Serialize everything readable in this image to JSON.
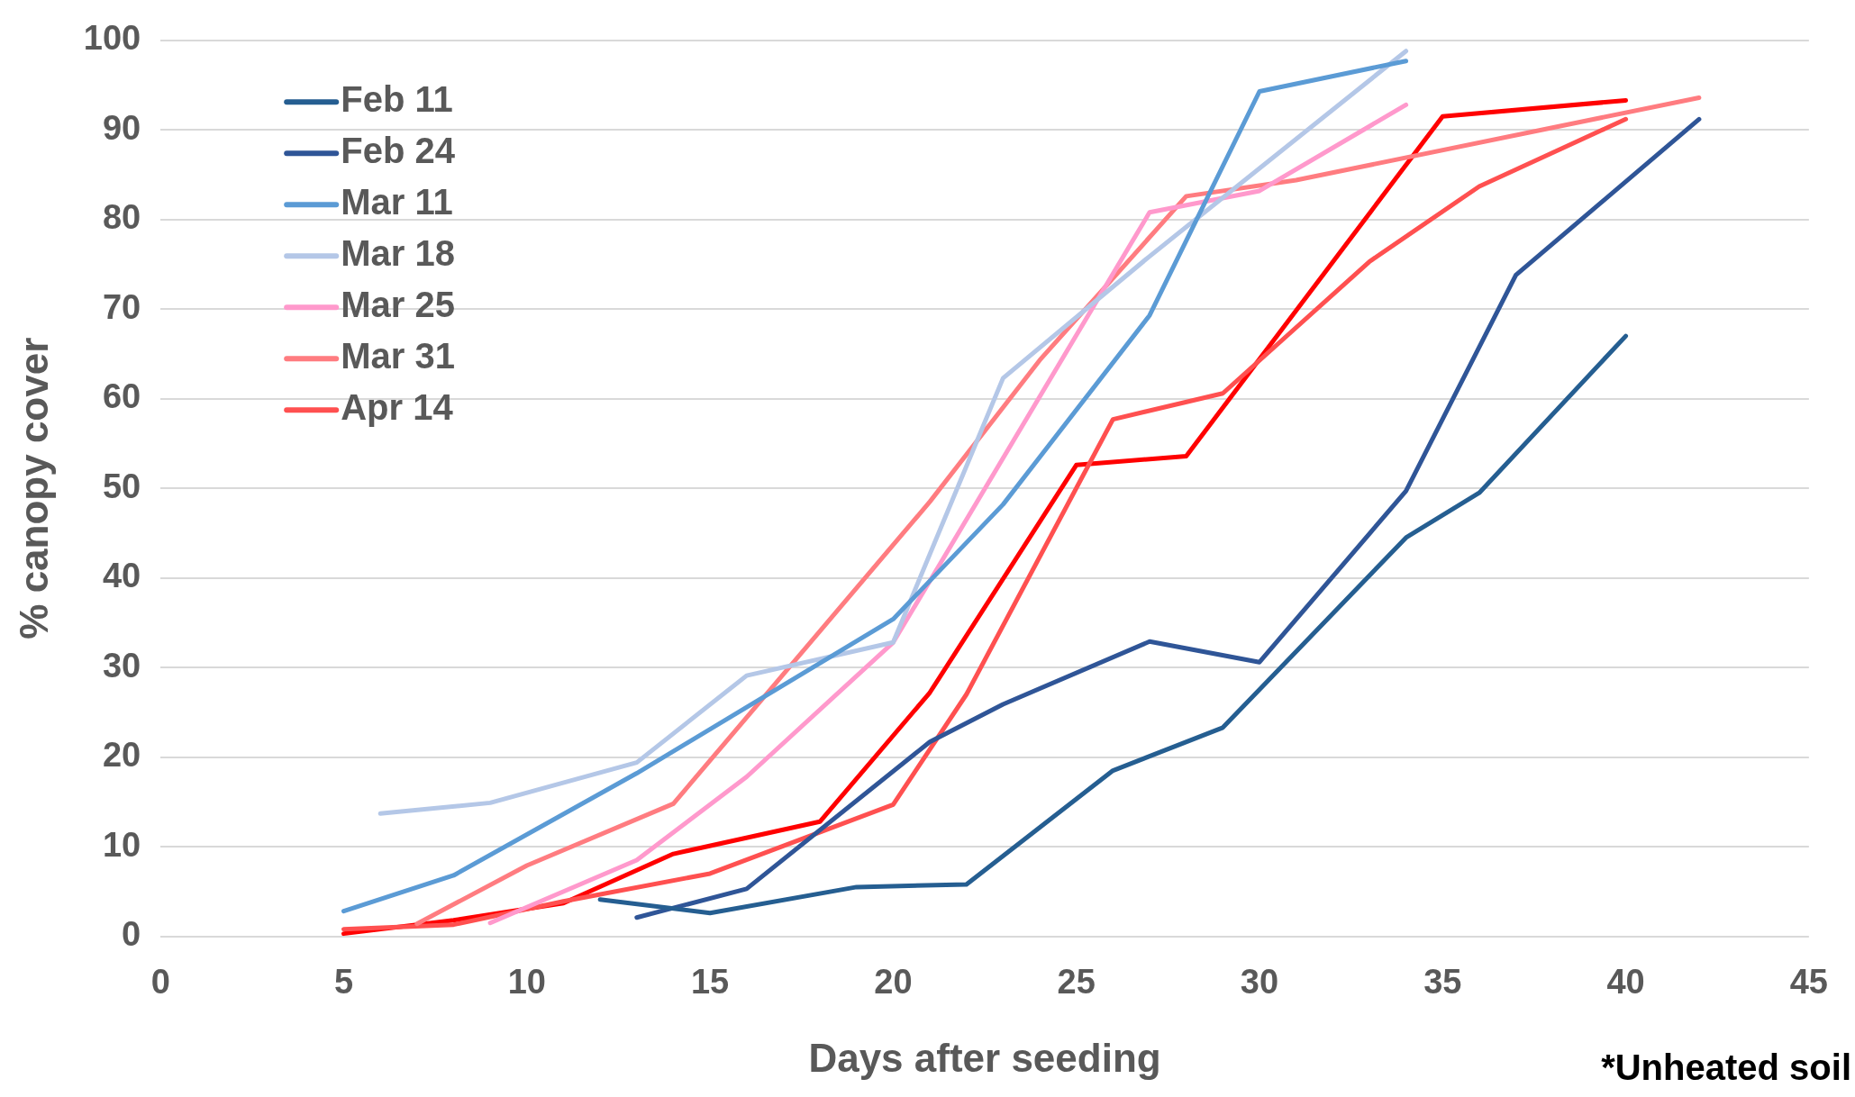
{
  "chart_data": {
    "type": "line",
    "xlabel": "Days after seeding",
    "ylabel": "% canopy cover",
    "annotations": [
      "*Unheated soil"
    ],
    "xlim": [
      0,
      45
    ],
    "xticks": [
      0,
      5,
      10,
      15,
      20,
      25,
      30,
      35,
      40,
      45
    ],
    "ylim": [
      0,
      100
    ],
    "yticks": [
      0,
      10,
      20,
      30,
      40,
      50,
      60,
      70,
      80,
      90,
      100
    ],
    "grid": "y",
    "legend": "top left",
    "marker": "none",
    "line_style": "solid",
    "series": [
      {
        "name": "Feb 11",
        "color": "#255e91",
        "x": [
          12,
          15,
          19,
          22,
          26,
          29,
          34,
          36,
          40
        ],
        "values": [
          4.1,
          2.6,
          5.5,
          5.8,
          18.5,
          23.3,
          44.5,
          49.5,
          67
        ]
      },
      {
        "name": "Feb 24",
        "color": "#2f5597",
        "x": [
          13,
          16,
          21,
          23,
          27,
          30,
          34,
          37,
          42
        ],
        "values": [
          2.1,
          5.3,
          21.7,
          25.9,
          32.9,
          30.6,
          49.7,
          73.8,
          91.2
        ]
      },
      {
        "name": "Mar 11",
        "color": "#5b9bd5",
        "x": [
          5,
          8,
          13,
          20,
          23,
          27,
          30,
          34
        ],
        "values": [
          2.8,
          6.8,
          18.2,
          35.4,
          48.2,
          69.3,
          94.3,
          97.7
        ]
      },
      {
        "name": "Mar 18",
        "color": "#b4c7e7",
        "x": [
          6,
          9,
          13,
          16,
          20,
          23,
          27,
          34
        ],
        "values": [
          13.7,
          14.9,
          19.4,
          29.1,
          32.8,
          62.3,
          75.9,
          98.8
        ]
      },
      {
        "name": "Mar 25",
        "color": "#ff99cc",
        "x": [
          9,
          13,
          16,
          20,
          27,
          30,
          34
        ],
        "values": [
          1.5,
          8.5,
          17.8,
          32.8,
          80.8,
          83.2,
          92.8
        ]
      },
      {
        "name": "Mar 31",
        "color": "#ff7c80",
        "x": [
          7,
          10,
          14,
          21,
          24,
          28,
          31,
          42
        ],
        "values": [
          1.4,
          7.9,
          14.8,
          48.5,
          64.3,
          82.6,
          84.4,
          93.6
        ]
      },
      {
        "name": "Apr 14",
        "color": "#ff5050",
        "x": [
          5,
          8,
          11,
          15,
          20,
          22,
          26,
          29,
          33,
          36,
          40
        ],
        "values": [
          0.8,
          1.3,
          3.9,
          7.0,
          14.7,
          27,
          57.7,
          60.6,
          75.3,
          83.7,
          91.2
        ]
      },
      {
        "color": "#ff0000",
        "x": [
          5,
          8,
          11,
          14,
          18,
          21,
          25,
          28,
          35,
          40
        ],
        "values": [
          0.3,
          1.8,
          3.7,
          9.2,
          12.8,
          27.2,
          52.6,
          53.6,
          91.5,
          93.3
        ]
      }
    ]
  }
}
